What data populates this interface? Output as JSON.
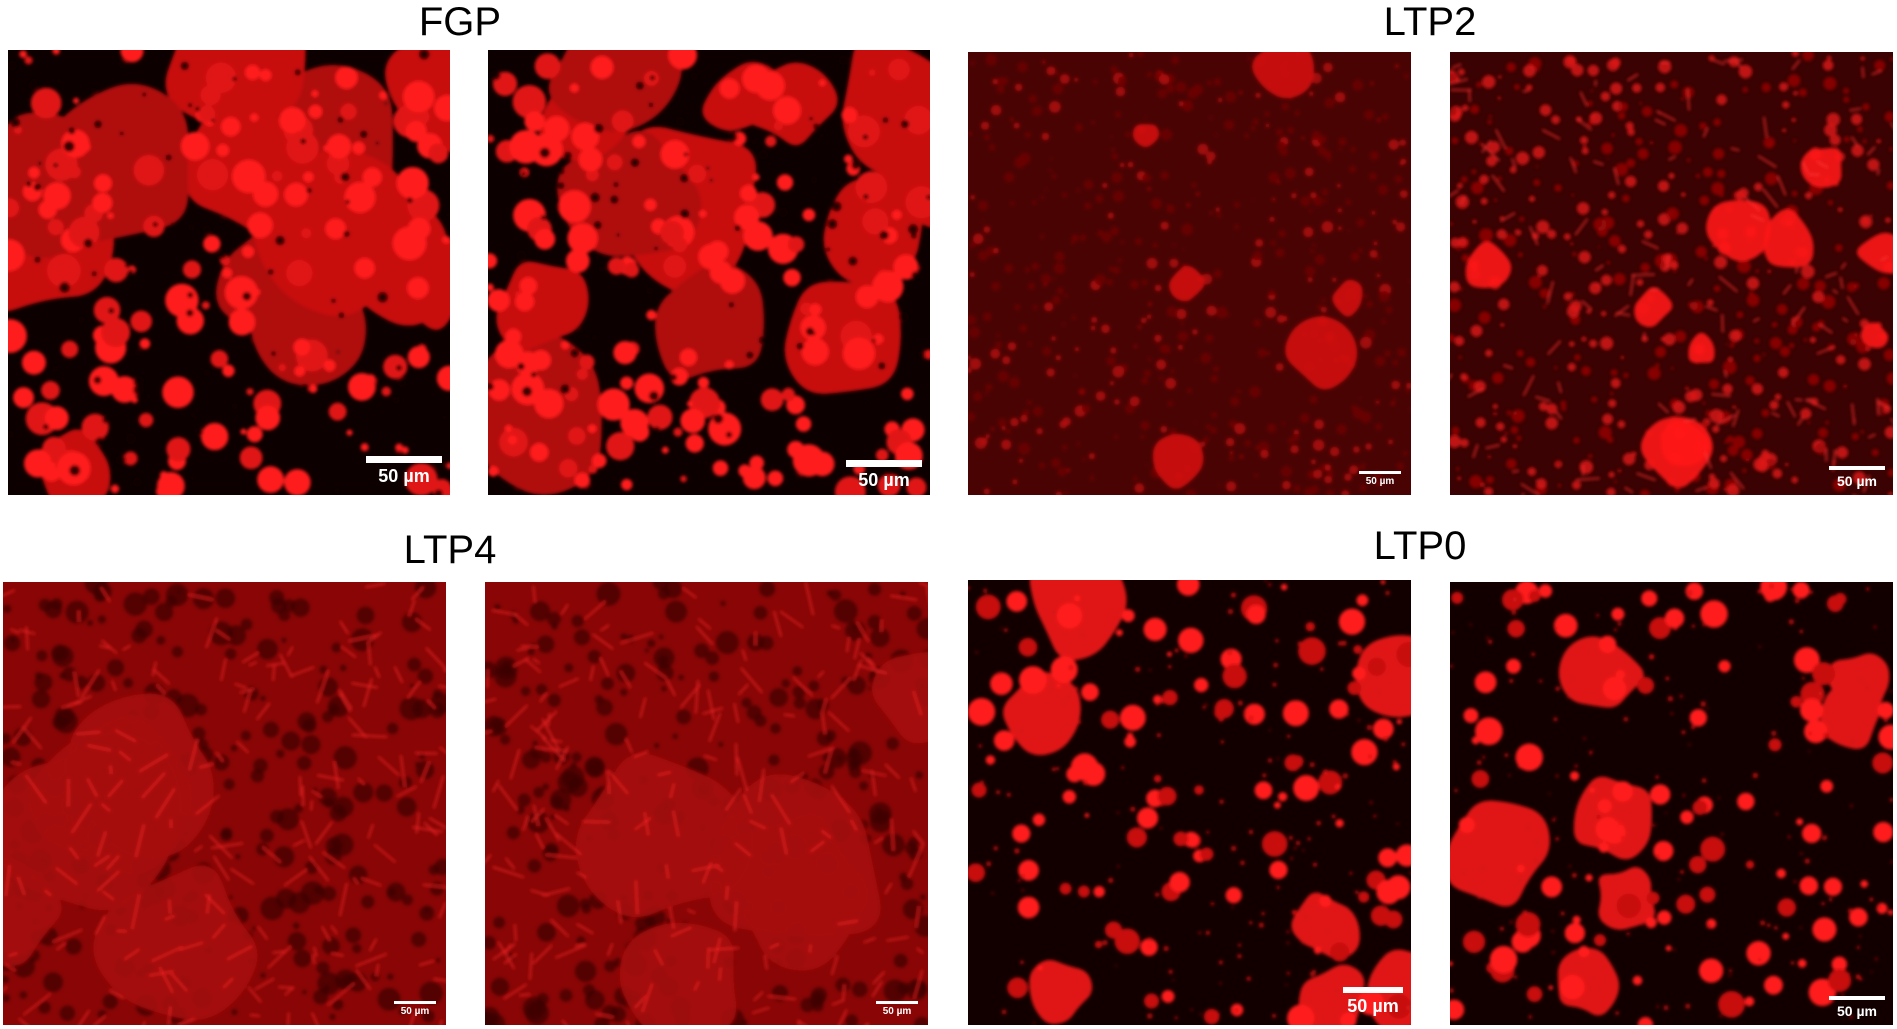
{
  "groups": [
    {
      "title": "FGP",
      "panels": [
        {
          "style": "droplet-network",
          "scale_bar": "50 µm",
          "scale_size": "big"
        },
        {
          "style": "droplet-network",
          "scale_bar": "50 µm",
          "scale_size": "big"
        }
      ]
    },
    {
      "title": "LTP2",
      "panels": [
        {
          "style": "dim-textured",
          "scale_bar": "50 µm",
          "scale_size": "small"
        },
        {
          "style": "fibrous-textured",
          "scale_bar": "50 µm",
          "scale_size": "mid"
        }
      ]
    },
    {
      "title": "LTP4",
      "panels": [
        {
          "style": "crystalline-fibrous",
          "scale_bar": "50 µm",
          "scale_size": "small"
        },
        {
          "style": "crystalline-fibrous",
          "scale_bar": "50 µm",
          "scale_size": "small"
        }
      ]
    },
    {
      "title": "LTP0",
      "panels": [
        {
          "style": "dispersed-droplets",
          "scale_bar": "50 µm",
          "scale_size": "big"
        },
        {
          "style": "dispersed-droplets",
          "scale_bar": "50 µm",
          "scale_size": "mid"
        }
      ]
    }
  ],
  "colors": {
    "fluorescence": "#ff1a1a",
    "background_dark": "#140000",
    "scale_bar": "#ffffff"
  }
}
